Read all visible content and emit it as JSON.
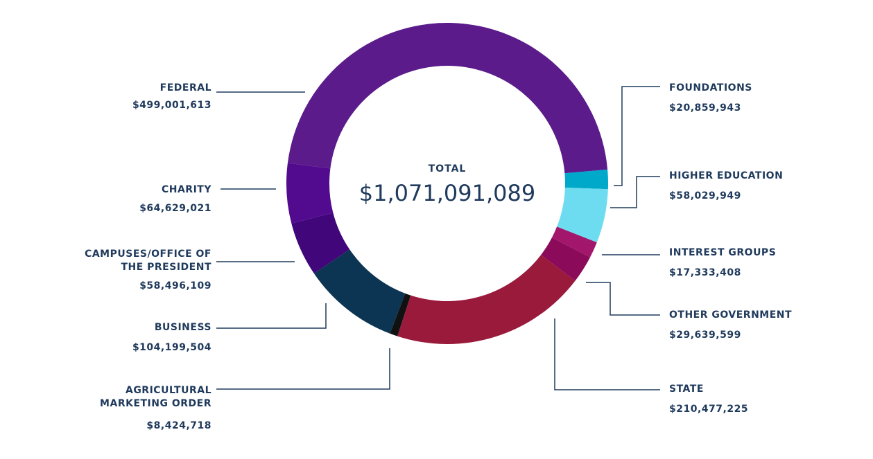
{
  "chart_data": {
    "type": "donut",
    "categories": [
      "FEDERAL",
      "FOUNDATIONS",
      "HIGHER EDUCATION",
      "INTEREST GROUPS",
      "OTHER GOVERNMENT",
      "STATE",
      "AGRICULTURAL MARKETING ORDER",
      "BUSINESS",
      "CAMPUSES/OFFICE OF THE PRESIDENT",
      "CHARITY"
    ],
    "values": [
      499001613,
      20859943,
      58029949,
      17333408,
      29639599,
      210477225,
      8424718,
      104199504,
      58496109,
      64629021
    ],
    "value_labels": [
      "$499,001,613",
      "$20,859,943",
      "$58,029,949",
      "$17,333,408",
      "$29,639,599",
      "$210,477,225",
      "$8,424,718",
      "$104,199,504",
      "$58,496,109",
      "$64,629,021"
    ],
    "colors": [
      "#5b1b8b",
      "#00a9c9",
      "#6edcf0",
      "#a2176b",
      "#8b0a5a",
      "#9a1a3c",
      "#111111",
      "#0b3552",
      "#40067a",
      "#520a8e"
    ],
    "total_title": "TOTAL",
    "total": 1071091089,
    "total_label": "$1,071,091,089"
  }
}
